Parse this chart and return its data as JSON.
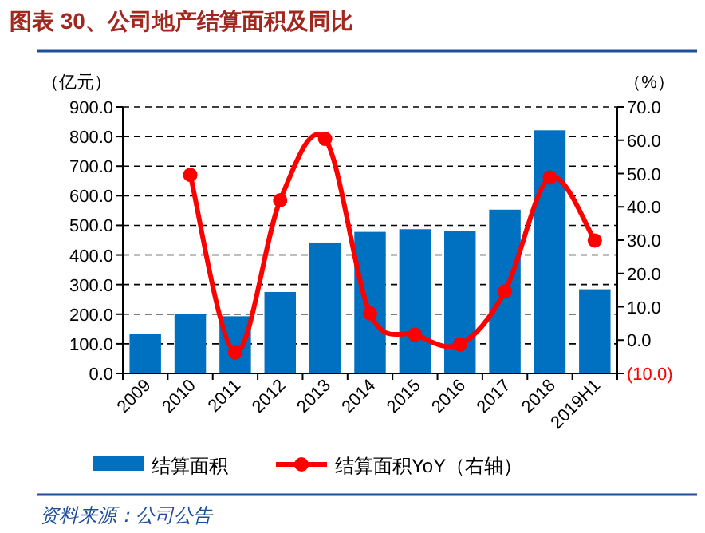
{
  "chart_data": {
    "type": "bar",
    "title": "图表 30、公司地产结算面积及同比",
    "ylabel": "（亿元）",
    "y2label": "（%）",
    "categories": [
      "2009",
      "2010",
      "2011",
      "2012",
      "2013",
      "2014",
      "2015",
      "2016",
      "2017",
      "2018",
      "2019H1"
    ],
    "series": [
      {
        "name": "结算面积",
        "color": "#0070c0",
        "values": [
          134,
          202,
          193,
          275,
          442,
          478,
          487,
          481,
          553,
          821,
          284
        ]
      },
      {
        "name": "结算面积YoY（右轴）",
        "type": "line",
        "axis": "y2",
        "color": "#ff0000",
        "marker": "circle",
        "values": [
          null,
          49.6,
          -3.7,
          42,
          60.4,
          8,
          1.6,
          -1.3,
          14.6,
          48.8,
          29.9
        ]
      }
    ],
    "ylim": [
      0,
      900
    ],
    "yticks": [
      {
        "value": 0,
        "label": "0.0"
      },
      {
        "value": 100,
        "label": "100.0"
      },
      {
        "value": 200,
        "label": "200.0"
      },
      {
        "value": 300,
        "label": "300.0"
      },
      {
        "value": 400,
        "label": "400.0"
      },
      {
        "value": 500,
        "label": "500.0"
      },
      {
        "value": 600,
        "label": "600.0"
      },
      {
        "value": 700,
        "label": "700.0"
      },
      {
        "value": 800,
        "label": "800.0"
      },
      {
        "value": 900,
        "label": "900.0"
      }
    ],
    "y2lim": [
      -10,
      70
    ],
    "y2ticks": [
      {
        "value": -10,
        "label": "(10.0)"
      },
      {
        "value": 0,
        "label": "0.0"
      },
      {
        "value": 10,
        "label": "10.0"
      },
      {
        "value": 20,
        "label": "20.0"
      },
      {
        "value": 30,
        "label": "30.0"
      },
      {
        "value": 40,
        "label": "40.0"
      },
      {
        "value": 50,
        "label": "50.0"
      },
      {
        "value": 60,
        "label": "60.0"
      },
      {
        "value": 70,
        "label": "70.0"
      }
    ],
    "grid": "y",
    "legend": "bottom",
    "annotations": [
      "资料来源：公司公告"
    ]
  }
}
